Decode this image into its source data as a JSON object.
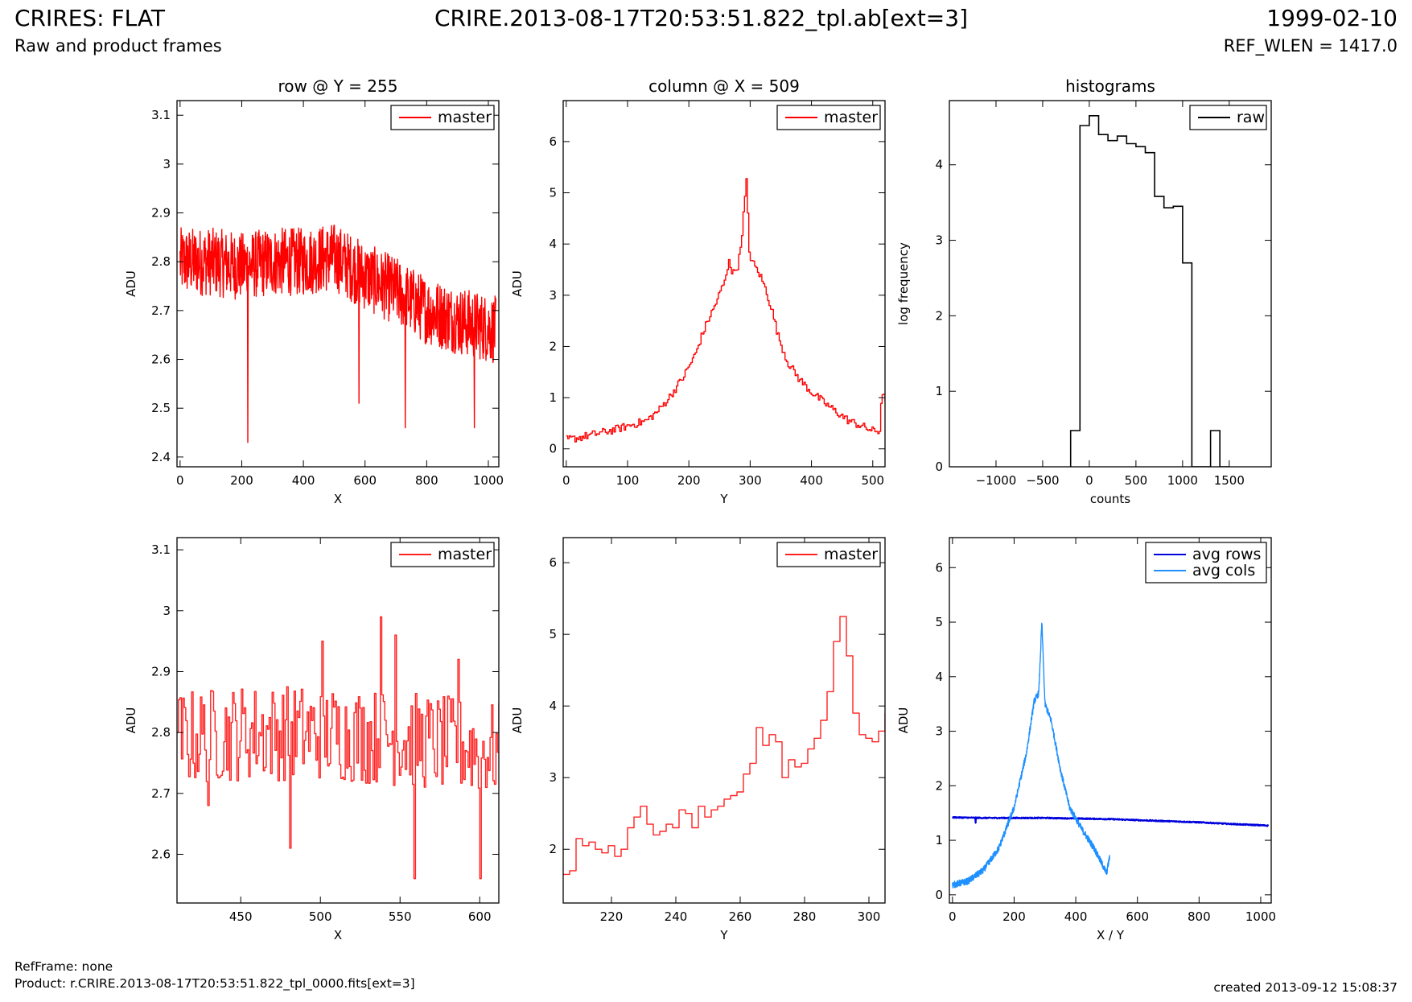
{
  "header": {
    "title": "CRIRES: FLAT",
    "subtitle": "Raw and product frames",
    "file": "CRIRE.2013-08-17T20:53:51.822_tpl.ab[ext=3]",
    "date": "1999-02-10",
    "ref_wlen": "REF_WLEN = 1417.0"
  },
  "footer": {
    "refframe": "RefFrame: none",
    "product": "Product: r.CRIRE.2013-08-17T20:53:51.822_tpl_0000.fits[ext=3]",
    "created": "created 2013-09-12 15:08:37"
  },
  "colors": {
    "red": "#ff0000",
    "black": "#000000",
    "dark_blue": "#0000dd",
    "light_blue": "#1e90ff"
  },
  "chart_data": [
    {
      "type": "line",
      "title": "row @ Y = 255",
      "xlabel": "X",
      "ylabel": "ADU",
      "xlim": [
        -10,
        1034
      ],
      "ylim": [
        2.38,
        3.13
      ],
      "xticks": [
        0,
        200,
        400,
        600,
        800,
        1000
      ],
      "yticks": [
        2.4,
        2.5,
        2.6,
        2.7,
        2.8,
        2.9,
        3.0,
        3.1
      ],
      "legend": "top-right",
      "series": [
        {
          "name": "master",
          "color": "#ff0000",
          "style": "noisy",
          "x": [
            0,
            100,
            200,
            300,
            400,
            500,
            600,
            700,
            800,
            900,
            1024
          ],
          "y": [
            2.8,
            2.8,
            2.79,
            2.8,
            2.8,
            2.81,
            2.77,
            2.74,
            2.7,
            2.68,
            2.66
          ],
          "noise": 0.07,
          "dips": [
            [
              220,
              2.43
            ],
            [
              730,
              2.46
            ],
            [
              580,
              2.51
            ],
            [
              955,
              2.46
            ]
          ]
        }
      ]
    },
    {
      "type": "line",
      "title": "column @ X = 509",
      "xlabel": "Y",
      "ylabel": "ADU",
      "xlim": [
        -5,
        520
      ],
      "ylim": [
        -0.35,
        6.8
      ],
      "xticks": [
        0,
        100,
        200,
        300,
        400,
        500
      ],
      "yticks": [
        0,
        1,
        2,
        3,
        4,
        5,
        6
      ],
      "legend": "top-right",
      "series": [
        {
          "name": "master",
          "color": "#ff0000",
          "style": "step",
          "x": [
            0,
            20,
            50,
            80,
            100,
            130,
            150,
            170,
            190,
            210,
            220,
            230,
            240,
            250,
            260,
            265,
            270,
            280,
            285,
            290,
            293,
            298,
            305,
            315,
            325,
            335,
            345,
            360,
            380,
            400,
            420,
            440,
            460,
            480,
            500,
            512,
            513,
            520
          ],
          "y": [
            0.18,
            0.22,
            0.3,
            0.38,
            0.45,
            0.55,
            0.75,
            1.05,
            1.4,
            1.85,
            2.2,
            2.5,
            2.75,
            3.05,
            3.35,
            3.75,
            3.4,
            3.6,
            4.1,
            4.8,
            5.25,
            3.8,
            3.6,
            3.4,
            3.1,
            2.7,
            2.2,
            1.7,
            1.35,
            1.1,
            0.9,
            0.72,
            0.55,
            0.45,
            0.35,
            0.35,
            1.0,
            1.0
          ],
          "noise": 0.08
        }
      ]
    },
    {
      "type": "line",
      "title": "histograms",
      "xlabel": "counts",
      "ylabel": "log frequency",
      "xlim": [
        -1500,
        1950
      ],
      "ylim": [
        0,
        4.85
      ],
      "xticks": [
        -1000,
        -500,
        0,
        500,
        1000,
        1500
      ],
      "yticks": [
        0,
        1,
        2,
        3,
        4
      ],
      "legend": "top-right",
      "series": [
        {
          "name": "raw",
          "color": "#000000",
          "style": "hist",
          "x": [
            -200,
            -100,
            0,
            100,
            200,
            300,
            400,
            500,
            600,
            700,
            800,
            900,
            1000,
            1100,
            1200,
            1300,
            1400
          ],
          "y": [
            0.48,
            4.52,
            4.65,
            4.4,
            4.32,
            4.38,
            4.28,
            4.24,
            4.16,
            3.58,
            3.43,
            3.45,
            2.7,
            0,
            0,
            0.48,
            0
          ]
        }
      ]
    },
    {
      "type": "line",
      "title": "",
      "xlabel": "X",
      "ylabel": "ADU",
      "xlim": [
        410,
        612
      ],
      "ylim": [
        2.52,
        3.12
      ],
      "xticks": [
        450,
        500,
        550,
        600
      ],
      "yticks": [
        2.6,
        2.7,
        2.8,
        2.9,
        3.0,
        3.1
      ],
      "legend": "top-right",
      "series": [
        {
          "name": "master",
          "color": "#ff2222",
          "style": "step",
          "x": [
            410,
            450,
            500,
            550,
            612
          ],
          "y": [
            2.79,
            2.8,
            2.8,
            2.79,
            2.77
          ],
          "noise": 0.08,
          "dips": [
            [
              481,
              2.61
            ],
            [
              559,
              2.56
            ],
            [
              600,
              2.56
            ],
            [
              429,
              2.68
            ]
          ],
          "peaks": [
            [
              501,
              2.95
            ],
            [
              538,
              2.99
            ],
            [
              547,
              2.96
            ],
            [
              586,
              2.92
            ]
          ]
        }
      ]
    },
    {
      "type": "line",
      "title": "",
      "xlabel": "Y",
      "ylabel": "ADU",
      "xlim": [
        205,
        305
      ],
      "ylim": [
        1.25,
        6.35
      ],
      "xticks": [
        220,
        240,
        260,
        280,
        300
      ],
      "yticks": [
        2,
        3,
        4,
        5,
        6
      ],
      "legend": "top-right",
      "series": [
        {
          "name": "master",
          "color": "#ff2222",
          "style": "step",
          "x": [
            205,
            207,
            209,
            211,
            213,
            215,
            217,
            219,
            221,
            223,
            225,
            227,
            229,
            231,
            233,
            235,
            237,
            239,
            241,
            243,
            245,
            247,
            249,
            251,
            253,
            255,
            257,
            259,
            261,
            263,
            265,
            267,
            269,
            271,
            273,
            275,
            277,
            279,
            281,
            283,
            285,
            287,
            289,
            291,
            293,
            295,
            297,
            299,
            301,
            303,
            305
          ],
          "y": [
            1.65,
            1.7,
            2.15,
            2.05,
            2.1,
            2.0,
            1.95,
            2.05,
            1.9,
            2.0,
            2.3,
            2.45,
            2.6,
            2.35,
            2.2,
            2.25,
            2.35,
            2.3,
            2.55,
            2.5,
            2.3,
            2.6,
            2.45,
            2.55,
            2.6,
            2.7,
            2.75,
            2.8,
            3.05,
            3.2,
            3.7,
            3.45,
            3.6,
            3.5,
            3.0,
            3.25,
            3.15,
            3.2,
            3.4,
            3.55,
            3.8,
            4.2,
            4.9,
            5.25,
            4.7,
            3.9,
            3.6,
            3.55,
            3.5,
            3.65,
            3.9
          ]
        }
      ]
    },
    {
      "type": "line",
      "title": "",
      "xlabel": "X / Y",
      "ylabel": "ADU",
      "xlim": [
        -10,
        1034
      ],
      "ylim": [
        -0.15,
        6.55
      ],
      "xticks": [
        0,
        200,
        400,
        600,
        800,
        1000
      ],
      "yticks": [
        0,
        1,
        2,
        3,
        4,
        5,
        6
      ],
      "legend": "top-right",
      "series": [
        {
          "name": "avg rows",
          "color": "#0000dd",
          "style": "noisy",
          "x": [
            0,
            100,
            200,
            300,
            400,
            500,
            600,
            700,
            800,
            900,
            1024
          ],
          "y": [
            1.42,
            1.41,
            1.41,
            1.41,
            1.4,
            1.39,
            1.37,
            1.35,
            1.33,
            1.3,
            1.27
          ],
          "noise": 0.01,
          "dips": [
            [
              75,
              1.32
            ]
          ]
        },
        {
          "name": "avg cols",
          "color": "#1e90ff",
          "style": "noisy",
          "x": [
            0,
            50,
            100,
            150,
            200,
            240,
            265,
            280,
            290,
            300,
            320,
            350,
            380,
            420,
            460,
            500,
            510
          ],
          "y": [
            0.18,
            0.25,
            0.45,
            0.85,
            1.6,
            2.6,
            3.55,
            3.7,
            5.0,
            3.5,
            3.2,
            2.3,
            1.6,
            1.2,
            0.85,
            0.4,
            0.7
          ],
          "noise": 0.06
        }
      ]
    }
  ]
}
